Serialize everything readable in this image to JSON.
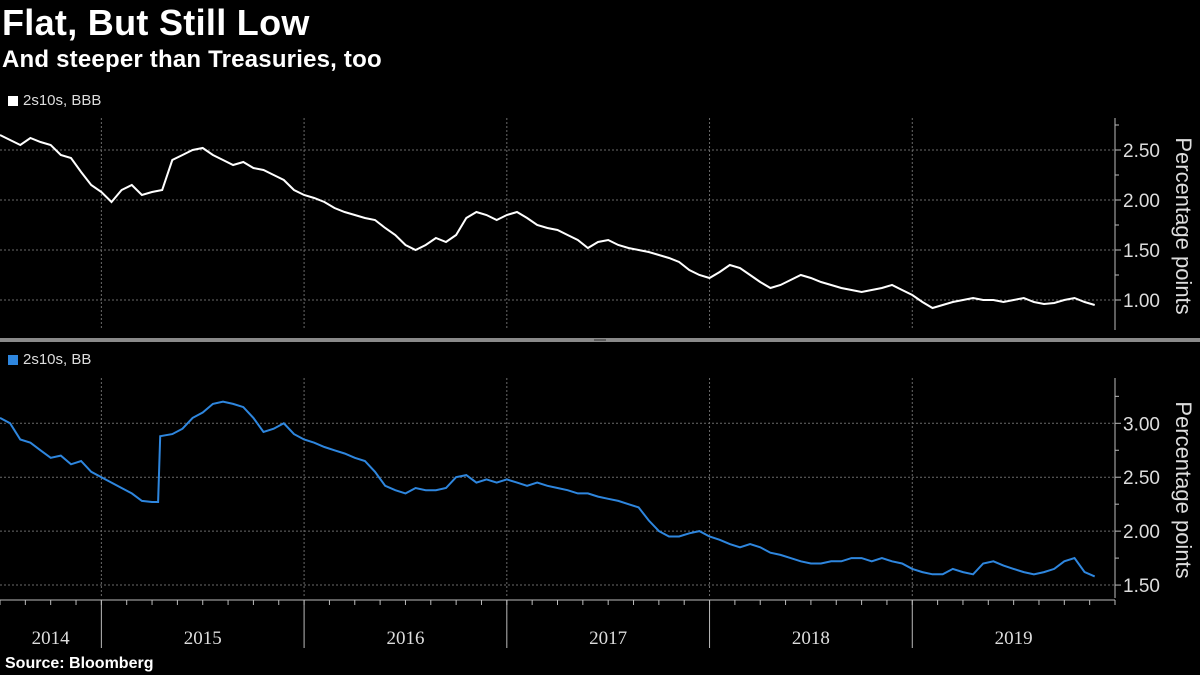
{
  "header": {
    "title": "Flat, But Still Low",
    "subtitle": "And steeper than Treasuries, too"
  },
  "footer": {
    "source": "Source: Bloomberg"
  },
  "colors": {
    "bbb": "#ffffff",
    "bb": "#2e86de",
    "grid": "#6a6a6a",
    "divider": "#8a8a8a"
  },
  "chart_data": [
    {
      "type": "line",
      "panel": "top",
      "legend": "2s10s, BBB",
      "ylabel": "Percentage points",
      "ylim": [
        0.7,
        2.82
      ],
      "yticks": [
        1.0,
        1.5,
        2.0,
        2.5
      ],
      "ytick_labels": [
        "1.00",
        "1.50",
        "2.00",
        "2.50"
      ],
      "xlim": [
        2014.0,
        2019.5
      ],
      "series": [
        {
          "name": "2s10s, BBB",
          "x": [
            2014.0,
            2014.05,
            2014.1,
            2014.15,
            2014.2,
            2014.25,
            2014.3,
            2014.35,
            2014.4,
            2014.45,
            2014.5,
            2014.55,
            2014.6,
            2014.65,
            2014.7,
            2014.75,
            2014.8,
            2014.85,
            2014.9,
            2014.95,
            2015.0,
            2015.05,
            2015.1,
            2015.15,
            2015.2,
            2015.25,
            2015.3,
            2015.35,
            2015.4,
            2015.45,
            2015.5,
            2015.55,
            2015.6,
            2015.65,
            2015.7,
            2015.75,
            2015.8,
            2015.85,
            2015.9,
            2015.95,
            2016.0,
            2016.05,
            2016.1,
            2016.15,
            2016.2,
            2016.25,
            2016.3,
            2016.35,
            2016.4,
            2016.45,
            2016.5,
            2016.55,
            2016.6,
            2016.65,
            2016.7,
            2016.75,
            2016.8,
            2016.85,
            2016.9,
            2016.95,
            2017.0,
            2017.05,
            2017.1,
            2017.15,
            2017.2,
            2017.25,
            2017.3,
            2017.35,
            2017.4,
            2017.45,
            2017.5,
            2017.55,
            2017.6,
            2017.65,
            2017.7,
            2017.75,
            2017.8,
            2017.85,
            2017.9,
            2017.95,
            2018.0,
            2018.05,
            2018.1,
            2018.15,
            2018.2,
            2018.25,
            2018.3,
            2018.35,
            2018.4,
            2018.45,
            2018.5,
            2018.55,
            2018.6,
            2018.65,
            2018.7,
            2018.75,
            2018.8,
            2018.85,
            2018.9,
            2018.95,
            2019.0,
            2019.05,
            2019.1,
            2019.15,
            2019.2,
            2019.25,
            2019.3,
            2019.35,
            2019.4
          ],
          "values": [
            2.65,
            2.6,
            2.55,
            2.62,
            2.58,
            2.55,
            2.45,
            2.42,
            2.28,
            2.15,
            2.08,
            1.98,
            2.1,
            2.15,
            2.05,
            2.08,
            2.1,
            2.4,
            2.45,
            2.5,
            2.52,
            2.45,
            2.4,
            2.35,
            2.38,
            2.32,
            2.3,
            2.25,
            2.2,
            2.1,
            2.05,
            2.02,
            1.98,
            1.92,
            1.88,
            1.85,
            1.82,
            1.8,
            1.72,
            1.65,
            1.55,
            1.5,
            1.55,
            1.62,
            1.58,
            1.65,
            1.82,
            1.88,
            1.85,
            1.8,
            1.85,
            1.88,
            1.82,
            1.75,
            1.72,
            1.7,
            1.65,
            1.6,
            1.52,
            1.58,
            1.6,
            1.55,
            1.52,
            1.5,
            1.48,
            1.45,
            1.42,
            1.38,
            1.3,
            1.25,
            1.22,
            1.28,
            1.35,
            1.32,
            1.25,
            1.18,
            1.12,
            1.15,
            1.2,
            1.25,
            1.22,
            1.18,
            1.15,
            1.12,
            1.1,
            1.08,
            1.1,
            1.12,
            1.15,
            1.1,
            1.05,
            0.98,
            0.92,
            0.95,
            0.98,
            1.0,
            1.02,
            1.0,
            1.0,
            0.98,
            1.0,
            1.02,
            0.98,
            0.96,
            0.97,
            1.0,
            1.02,
            0.98,
            0.95
          ]
        }
      ]
    },
    {
      "type": "line",
      "panel": "bottom",
      "legend": "2s10s, BB",
      "ylabel": "Percentage points",
      "ylim": [
        1.38,
        3.42
      ],
      "yticks": [
        1.5,
        2.0,
        2.5,
        3.0
      ],
      "ytick_labels": [
        "1.50",
        "2.00",
        "2.50",
        "3.00"
      ],
      "xlim": [
        2014.0,
        2019.5
      ],
      "xtick_labels": [
        "2014",
        "2015",
        "2016",
        "2017",
        "2018",
        "2019"
      ],
      "series": [
        {
          "name": "2s10s, BB",
          "x": [
            2014.0,
            2014.05,
            2014.1,
            2014.15,
            2014.2,
            2014.25,
            2014.3,
            2014.35,
            2014.4,
            2014.45,
            2014.5,
            2014.55,
            2014.6,
            2014.65,
            2014.7,
            2014.75,
            2014.78,
            2014.79,
            2014.85,
            2014.9,
            2014.95,
            2015.0,
            2015.05,
            2015.1,
            2015.15,
            2015.2,
            2015.25,
            2015.3,
            2015.35,
            2015.4,
            2015.45,
            2015.5,
            2015.55,
            2015.6,
            2015.65,
            2015.7,
            2015.75,
            2015.8,
            2015.85,
            2015.9,
            2015.95,
            2016.0,
            2016.05,
            2016.1,
            2016.15,
            2016.2,
            2016.25,
            2016.3,
            2016.35,
            2016.4,
            2016.45,
            2016.5,
            2016.55,
            2016.6,
            2016.65,
            2016.7,
            2016.75,
            2016.8,
            2016.85,
            2016.9,
            2016.95,
            2017.0,
            2017.05,
            2017.1,
            2017.15,
            2017.2,
            2017.25,
            2017.3,
            2017.35,
            2017.4,
            2017.45,
            2017.5,
            2017.55,
            2017.6,
            2017.65,
            2017.7,
            2017.75,
            2017.8,
            2017.85,
            2017.9,
            2017.95,
            2018.0,
            2018.05,
            2018.1,
            2018.15,
            2018.2,
            2018.25,
            2018.3,
            2018.35,
            2018.4,
            2018.45,
            2018.5,
            2018.55,
            2018.6,
            2018.65,
            2018.7,
            2018.75,
            2018.8,
            2018.85,
            2018.9,
            2018.95,
            2019.0,
            2019.05,
            2019.1,
            2019.15,
            2019.2,
            2019.25,
            2019.3,
            2019.35,
            2019.4
          ],
          "values": [
            3.05,
            3.0,
            2.85,
            2.82,
            2.75,
            2.68,
            2.7,
            2.62,
            2.65,
            2.55,
            2.5,
            2.45,
            2.4,
            2.35,
            2.28,
            2.27,
            2.27,
            2.88,
            2.9,
            2.95,
            3.05,
            3.1,
            3.18,
            3.2,
            3.18,
            3.15,
            3.05,
            2.92,
            2.95,
            3.0,
            2.9,
            2.85,
            2.82,
            2.78,
            2.75,
            2.72,
            2.68,
            2.65,
            2.55,
            2.42,
            2.38,
            2.35,
            2.4,
            2.38,
            2.38,
            2.4,
            2.5,
            2.52,
            2.45,
            2.48,
            2.45,
            2.48,
            2.45,
            2.42,
            2.45,
            2.42,
            2.4,
            2.38,
            2.35,
            2.35,
            2.32,
            2.3,
            2.28,
            2.25,
            2.22,
            2.1,
            2.0,
            1.95,
            1.95,
            1.98,
            2.0,
            1.95,
            1.92,
            1.88,
            1.85,
            1.88,
            1.85,
            1.8,
            1.78,
            1.75,
            1.72,
            1.7,
            1.7,
            1.72,
            1.72,
            1.75,
            1.75,
            1.72,
            1.75,
            1.72,
            1.7,
            1.65,
            1.62,
            1.6,
            1.6,
            1.65,
            1.62,
            1.6,
            1.7,
            1.72,
            1.68,
            1.65,
            1.62,
            1.6,
            1.62,
            1.65,
            1.72,
            1.75,
            1.62,
            1.58
          ]
        }
      ]
    }
  ]
}
